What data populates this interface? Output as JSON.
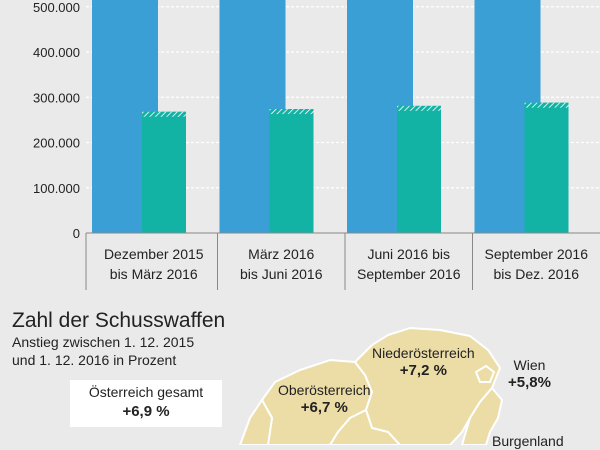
{
  "chart_data": {
    "type": "bar",
    "categories": [
      [
        "Dezember 2015",
        "bis März 2016"
      ],
      [
        "März 2016",
        "bis Juni 2016"
      ],
      [
        "Juni 2016 bis",
        "September 2016"
      ],
      [
        "September 2016",
        "bis Dez. 2016"
      ]
    ],
    "series": [
      {
        "color": "#3a9fd4",
        "values": [
          560000,
          560000,
          560000,
          560000
        ]
      },
      {
        "color": "#12b3a5",
        "values": [
          268000,
          274000,
          281000,
          288000
        ]
      }
    ],
    "y_ticks": [
      "0",
      "100.000",
      "200.000",
      "300.000",
      "400.000",
      "500.000"
    ],
    "ylim": [
      0,
      515000
    ],
    "grid": true
  },
  "map": {
    "title": "Zahl der Schusswaffen",
    "subtitle_line1": "Anstieg zwischen 1. 12. 2015",
    "subtitle_line2": "und 1. 12. 2016 in Prozent",
    "total": {
      "label": "Österreich gesamt",
      "value": "+6,9 %"
    },
    "regions": {
      "niederoesterreich": {
        "label": "Niederösterreich",
        "value": "+7,2 %"
      },
      "oberoesterreich": {
        "label": "Oberösterreich",
        "value": "+6,7 %"
      },
      "wien": {
        "label": "Wien",
        "value": "+5,8%"
      },
      "burgenland": {
        "label": "Burgenland"
      }
    },
    "fill_color": "#ecdca6",
    "border_color": "#ffffff"
  }
}
